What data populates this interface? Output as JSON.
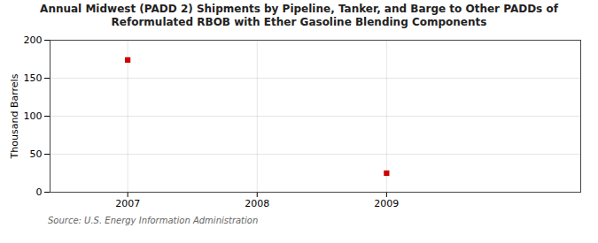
{
  "chart_data": {
    "type": "scatter",
    "title": "Annual Midwest (PADD 2) Shipments by Pipeline, Tanker, and Barge to Other PADDs of\nReformulated RBOB with Ether Gasoline Blending Components",
    "ylabel": "Thousand Barrels",
    "source": "Source: U.S. Energy Information Administration",
    "x": [
      2007,
      2009
    ],
    "values": [
      174,
      25
    ],
    "color": "#cc0000",
    "marker": "square",
    "xlim": [
      2006.4,
      2010.5
    ],
    "ylim": [
      0,
      200
    ],
    "xticks": [
      2007,
      2008,
      2009
    ],
    "yticks": [
      0,
      50,
      100,
      150,
      200
    ],
    "grid": true
  }
}
